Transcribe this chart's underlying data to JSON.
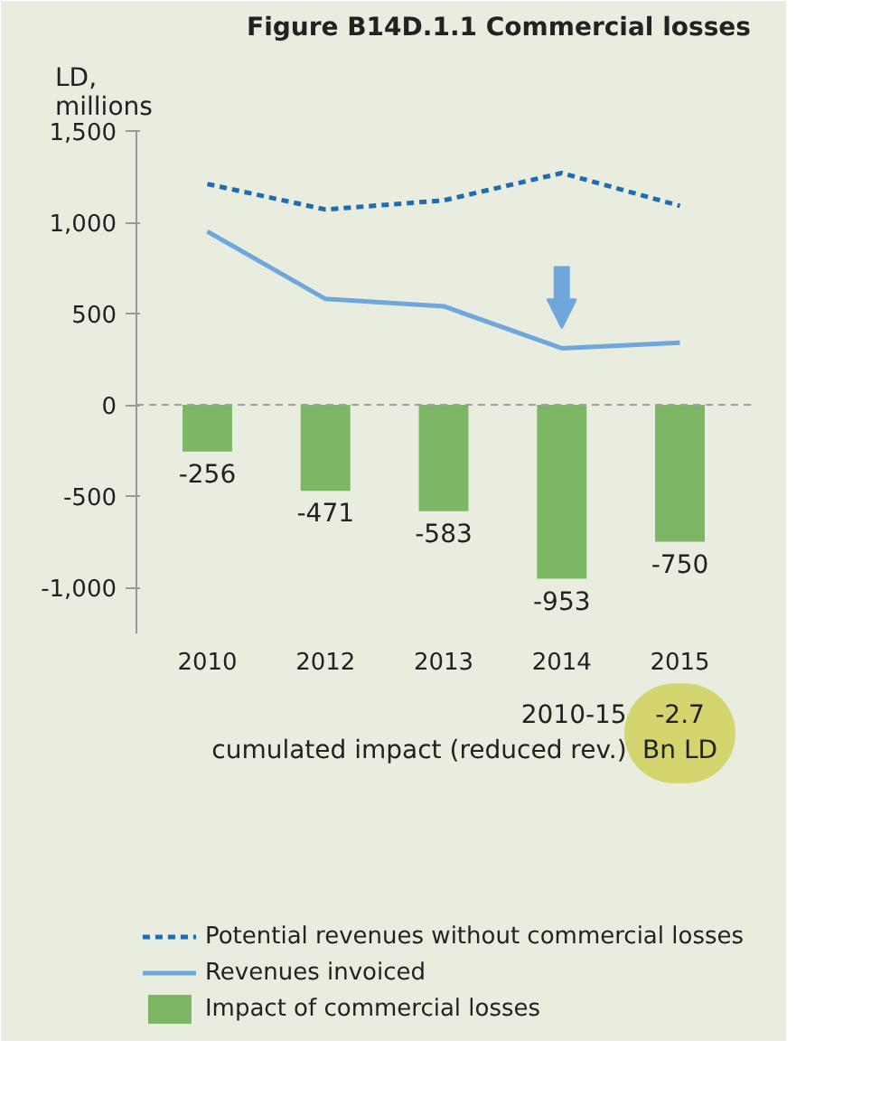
{
  "chart_data": {
    "type": "bar",
    "title": "Figure B14D.1.1 Commercial losses",
    "ylabel": "LD,\nmillions",
    "categories": [
      "2010",
      "2012",
      "2013",
      "2014",
      "2015"
    ],
    "series": [
      {
        "name": "Potential revenues without commercial losses",
        "type": "line",
        "line_style": "dashed",
        "color": "#1f6cb0",
        "values": [
          1210,
          1070,
          1120,
          1270,
          1090
        ]
      },
      {
        "name": "Revenues invoiced",
        "type": "line",
        "line_style": "solid",
        "color": "#6fa6dc",
        "values": [
          950,
          580,
          540,
          310,
          340
        ]
      },
      {
        "name": "Impact of commercial losses",
        "color": "#7db665",
        "values": [
          -256,
          -471,
          -583,
          -953,
          -750
        ],
        "value_labels": [
          "-256",
          "-471",
          "-583",
          "-953",
          "-750"
        ]
      }
    ],
    "ylim": [
      -1250,
      1500
    ],
    "yticks": [
      {
        "value": -1000,
        "label": "-1,000"
      },
      {
        "value": -500,
        "label": "-500"
      },
      0,
      {
        "value": 500,
        "label": "500"
      },
      {
        "value": 1000,
        "label": "1,000"
      },
      {
        "value": 1500,
        "label": "1,500"
      }
    ],
    "ref_lines": [
      {
        "axis": "y",
        "value": 0,
        "label": null,
        "color": "#a0a0a0",
        "line_style": "dashed"
      }
    ],
    "annotations": [
      "2010-15\ncumulated impact (reduced rev.)",
      "-2.7\nBn LD"
    ],
    "grid": false,
    "legend": "bottom"
  }
}
